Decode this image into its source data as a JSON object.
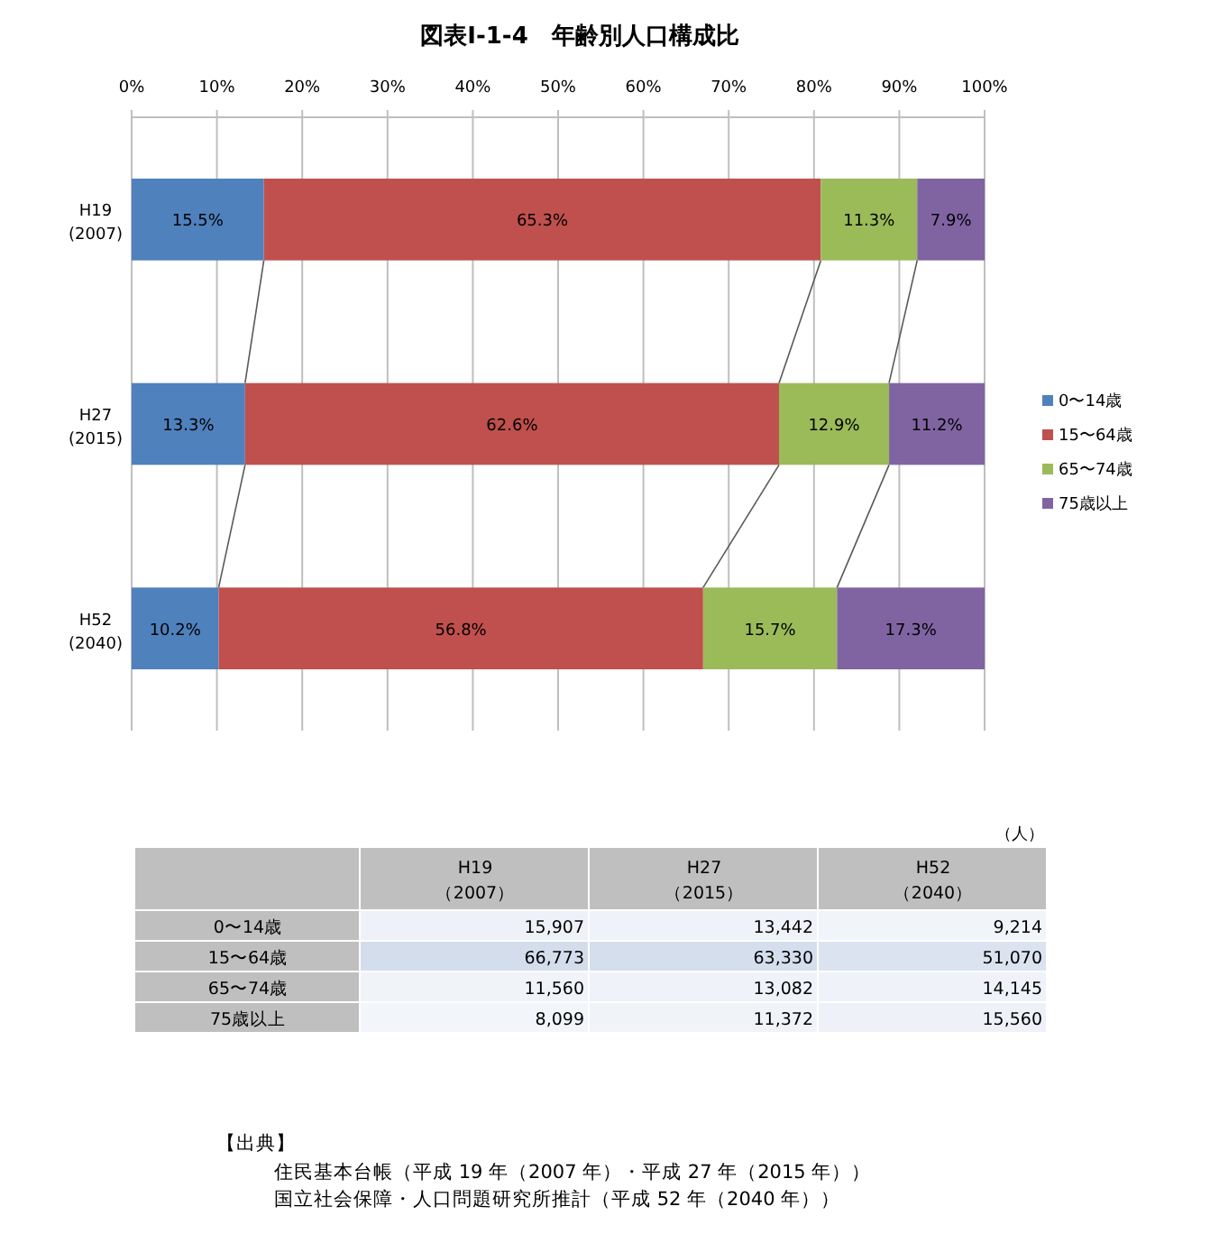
{
  "chart_data": [
    {
      "type": "bar",
      "title": "図表Ⅰ-1-4　年齢別人口構成比",
      "orientation": "horizontal",
      "stacked": true,
      "categories": [
        "H19\n(2007)",
        "H27\n(2015)",
        "H52\n(2040)"
      ],
      "series": [
        {
          "name": "0〜14歳",
          "color": "#4f81bd",
          "values": [
            15.5,
            13.3,
            10.2
          ],
          "value_labels": [
            "15.5%",
            "13.3%",
            "10.2%"
          ]
        },
        {
          "name": "15〜64歳",
          "color": "#c0504d",
          "values": [
            65.3,
            62.6,
            56.8
          ],
          "value_labels": [
            "65.3%",
            "62.6%",
            "56.8%"
          ]
        },
        {
          "name": "65〜74歳",
          "color": "#9bbb59",
          "values": [
            11.3,
            12.9,
            15.7
          ],
          "value_labels": [
            "11.3%",
            "12.9%",
            "15.7%"
          ]
        },
        {
          "name": "75歳以上",
          "color": "#8064a2",
          "values": [
            7.9,
            11.2,
            17.3
          ],
          "value_labels": [
            "7.9%",
            "11.2%",
            "17.3%"
          ]
        }
      ],
      "xlim": [
        0,
        100
      ],
      "xticks": [
        {
          "value": 0,
          "label": "0%"
        },
        {
          "value": 10,
          "label": "10%"
        },
        {
          "value": 20,
          "label": "20%"
        },
        {
          "value": 30,
          "label": "30%"
        },
        {
          "value": 40,
          "label": "40%"
        },
        {
          "value": 50,
          "label": "50%"
        },
        {
          "value": 60,
          "label": "60%"
        },
        {
          "value": 70,
          "label": "70%"
        },
        {
          "value": 80,
          "label": "80%"
        },
        {
          "value": 90,
          "label": "90%"
        },
        {
          "value": 100,
          "label": "100%"
        }
      ],
      "grid": "x",
      "legend": "right"
    },
    {
      "type": "heatmap",
      "categories": [
        "H19\n（2007）",
        "H27\n（2015）",
        "H52\n（2040）"
      ],
      "y_categories": [
        "0〜14歳",
        "15〜64歳",
        "65〜74歳",
        "75歳以上"
      ],
      "cells": [
        [
          15907,
          13442,
          9214
        ],
        [
          66773,
          63330,
          51070
        ],
        [
          11560,
          13082,
          14145
        ],
        [
          8099,
          11372,
          15560
        ]
      ],
      "cell_labels": [
        [
          "15,907",
          "13,442",
          "9,214"
        ],
        [
          "66,773",
          "63,330",
          "51,070"
        ],
        [
          "11,560",
          "13,082",
          "14,145"
        ],
        [
          "8,099",
          "11,372",
          "15,560"
        ]
      ],
      "annotations": [
        "（人）",
        "【出典】",
        "住民基本台帳（平成 19 年（2007 年）・平成 27 年（2015 年））",
        "国立社会保障・人口問題研究所推計（平成 52 年（2040 年））"
      ]
    }
  ]
}
